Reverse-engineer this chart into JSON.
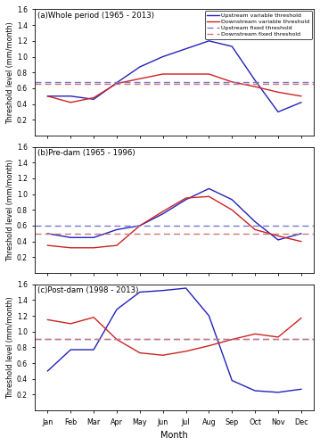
{
  "months": [
    "Jan",
    "Feb",
    "Mar",
    "Apr",
    "May",
    "Jun",
    "Jul",
    "Aug",
    "Sep",
    "Oct",
    "Nov",
    "Dec"
  ],
  "panel_a": {
    "title": "(a)Whole period (1965 - 2013)",
    "upstream_variable": [
      0.5,
      0.5,
      0.46,
      0.67,
      0.87,
      1.0,
      1.1,
      1.2,
      1.13,
      0.7,
      0.3,
      0.42
    ],
    "downstream_variable": [
      0.5,
      0.42,
      0.48,
      0.66,
      0.72,
      0.78,
      0.78,
      0.78,
      0.68,
      0.62,
      0.55,
      0.5
    ],
    "upstream_fixed": 0.68,
    "downstream_fixed": 0.65,
    "ylim": [
      0.0,
      1.6
    ],
    "yticks": [
      0.2,
      0.4,
      0.6,
      0.8,
      1.0,
      1.2,
      1.4,
      1.6
    ]
  },
  "panel_b": {
    "title": "(b)Pre-dam (1965 - 1996)",
    "upstream_variable": [
      0.5,
      0.45,
      0.45,
      0.55,
      0.6,
      0.75,
      0.93,
      1.07,
      0.93,
      0.65,
      0.42,
      0.5
    ],
    "downstream_variable": [
      0.35,
      0.32,
      0.32,
      0.35,
      0.6,
      0.78,
      0.95,
      0.97,
      0.8,
      0.55,
      0.47,
      0.4
    ],
    "upstream_fixed": 0.6,
    "downstream_fixed": 0.5,
    "ylim": [
      0.0,
      1.6
    ],
    "yticks": [
      0.2,
      0.4,
      0.6,
      0.8,
      1.0,
      1.2,
      1.4,
      1.6
    ]
  },
  "panel_c": {
    "title": "(c)Post-dam (1998 - 2013)",
    "upstream_variable": [
      0.5,
      0.77,
      0.77,
      1.28,
      1.5,
      1.52,
      1.55,
      1.2,
      0.38,
      0.25,
      0.23,
      0.27
    ],
    "downstream_variable": [
      1.15,
      1.1,
      1.18,
      0.9,
      0.73,
      0.7,
      0.75,
      0.82,
      0.9,
      0.97,
      0.93,
      1.17
    ],
    "upstream_fixed": 0.91,
    "downstream_fixed": 0.91,
    "ylim": [
      0.0,
      1.6
    ],
    "yticks": [
      0.2,
      0.4,
      0.6,
      0.8,
      1.0,
      1.2,
      1.4,
      1.6
    ]
  },
  "colors": {
    "upstream": "#2222BB",
    "downstream": "#CC2222",
    "upstream_fixed": "#7777CC",
    "downstream_fixed": "#CC7777"
  },
  "ylabel": "Threshold level (mm/month)",
  "xlabel": "Month",
  "legend_labels": [
    "Upstream variable threshold",
    "Downstream variable threshold",
    "Upstream fixed threshold",
    "Downstream fixed threshold"
  ],
  "fig_bg": "#FFFFFF",
  "ax_bg": "#FFFFFF"
}
